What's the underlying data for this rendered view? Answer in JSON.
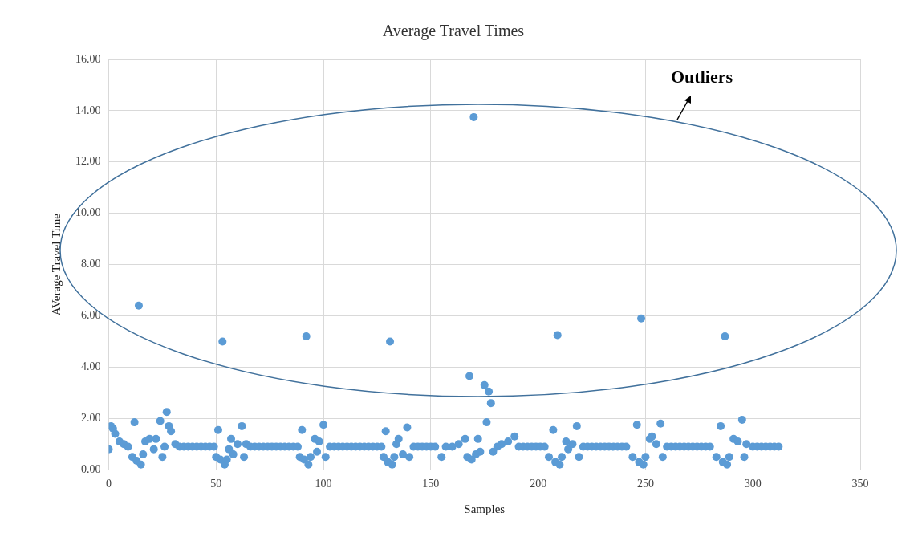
{
  "chart_data": {
    "type": "scatter",
    "title": "Average Travel Times",
    "xlabel": "Samples",
    "ylabel": "AVerage Travel Time",
    "annotations": [
      "Outliers"
    ],
    "x": [
      0,
      1,
      2,
      3,
      5,
      7,
      9,
      11,
      12,
      13,
      14,
      15,
      16,
      17,
      19,
      21,
      22,
      24,
      25,
      26,
      27,
      28,
      29,
      31,
      33,
      35,
      37,
      39,
      41,
      43,
      45,
      47,
      49,
      50,
      51,
      52,
      53,
      54,
      55,
      56,
      57,
      58,
      60,
      62,
      63,
      64,
      66,
      68,
      70,
      72,
      74,
      76,
      78,
      80,
      82,
      84,
      86,
      88,
      89,
      90,
      91,
      92,
      93,
      94,
      96,
      97,
      98,
      100,
      101,
      103,
      105,
      107,
      109,
      111,
      113,
      115,
      117,
      119,
      121,
      123,
      125,
      127,
      128,
      129,
      130,
      131,
      132,
      133,
      134,
      135,
      137,
      139,
      140,
      142,
      144,
      146,
      148,
      150,
      152,
      155,
      157,
      160,
      163,
      166,
      167,
      168,
      169,
      170,
      171,
      172,
      173,
      175,
      176,
      177,
      178,
      179,
      181,
      183,
      186,
      189,
      191,
      193,
      195,
      197,
      199,
      201,
      203,
      205,
      207,
      208,
      209,
      210,
      211,
      213,
      214,
      216,
      218,
      219,
      221,
      223,
      225,
      227,
      229,
      231,
      233,
      235,
      237,
      239,
      241,
      244,
      246,
      247,
      248,
      249,
      250,
      252,
      253,
      255,
      257,
      258,
      260,
      262,
      264,
      266,
      268,
      270,
      272,
      274,
      276,
      278,
      280,
      283,
      285,
      286,
      287,
      288,
      289,
      291,
      293,
      295,
      296,
      297,
      300,
      302,
      304,
      306,
      308,
      310,
      312
    ],
    "values": [
      0.8,
      1.7,
      1.6,
      1.4,
      1.1,
      1.0,
      0.9,
      0.5,
      1.85,
      0.35,
      6.4,
      0.2,
      0.6,
      1.1,
      1.2,
      0.8,
      1.2,
      1.9,
      0.5,
      0.9,
      2.25,
      1.7,
      1.5,
      1.0,
      0.9,
      0.9,
      0.9,
      0.9,
      0.9,
      0.9,
      0.9,
      0.9,
      0.9,
      0.5,
      1.55,
      0.4,
      5.0,
      0.2,
      0.4,
      0.8,
      1.2,
      0.6,
      1.0,
      1.7,
      0.5,
      1.0,
      0.9,
      0.9,
      0.9,
      0.9,
      0.9,
      0.9,
      0.9,
      0.9,
      0.9,
      0.9,
      0.9,
      0.9,
      0.5,
      1.55,
      0.4,
      5.2,
      0.2,
      0.5,
      1.2,
      0.7,
      1.1,
      1.75,
      0.5,
      0.9,
      0.9,
      0.9,
      0.9,
      0.9,
      0.9,
      0.9,
      0.9,
      0.9,
      0.9,
      0.9,
      0.9,
      0.9,
      0.5,
      1.5,
      0.3,
      5.0,
      0.2,
      0.5,
      1.0,
      1.2,
      0.6,
      1.65,
      0.5,
      0.9,
      0.9,
      0.9,
      0.9,
      0.9,
      0.9,
      0.5,
      0.9,
      0.9,
      1.0,
      1.2,
      0.5,
      3.65,
      0.4,
      13.75,
      0.6,
      1.2,
      0.7,
      3.3,
      1.85,
      3.05,
      2.6,
      0.7,
      0.9,
      1.0,
      1.1,
      1.3,
      0.9,
      0.9,
      0.9,
      0.9,
      0.9,
      0.9,
      0.9,
      0.5,
      1.55,
      0.3,
      5.25,
      0.2,
      0.5,
      1.1,
      0.8,
      1.0,
      1.7,
      0.5,
      0.9,
      0.9,
      0.9,
      0.9,
      0.9,
      0.9,
      0.9,
      0.9,
      0.9,
      0.9,
      0.9,
      0.5,
      1.75,
      0.3,
      5.9,
      0.2,
      0.5,
      1.2,
      1.3,
      1.0,
      1.8,
      0.5,
      0.9,
      0.9,
      0.9,
      0.9,
      0.9,
      0.9,
      0.9,
      0.9,
      0.9,
      0.9,
      0.9,
      0.5,
      1.7,
      0.3,
      5.2,
      0.2,
      0.5,
      1.2,
      1.1,
      1.95,
      0.5,
      1.0,
      0.9,
      0.9,
      0.9,
      0.9,
      0.9,
      0.9,
      0.9
    ],
    "color": "#5b9bd5",
    "marker": "circle",
    "grid": true,
    "legend": false,
    "xlim": [
      0,
      350
    ],
    "xticks": [
      0,
      50,
      100,
      150,
      200,
      250,
      300,
      350
    ],
    "ylim": [
      0,
      16
    ],
    "yticks": [
      {
        "value": 0,
        "label": "0.00"
      },
      {
        "value": 2,
        "label": "2.00"
      },
      {
        "value": 4,
        "label": "4.00"
      },
      {
        "value": 6,
        "label": "6.00"
      },
      {
        "value": 8,
        "label": "8.00"
      },
      {
        "value": 10,
        "label": "10.00"
      },
      {
        "value": 12,
        "label": "12.00"
      },
      {
        "value": 14,
        "label": "14.00"
      },
      {
        "value": 16,
        "label": "16.00"
      }
    ]
  }
}
